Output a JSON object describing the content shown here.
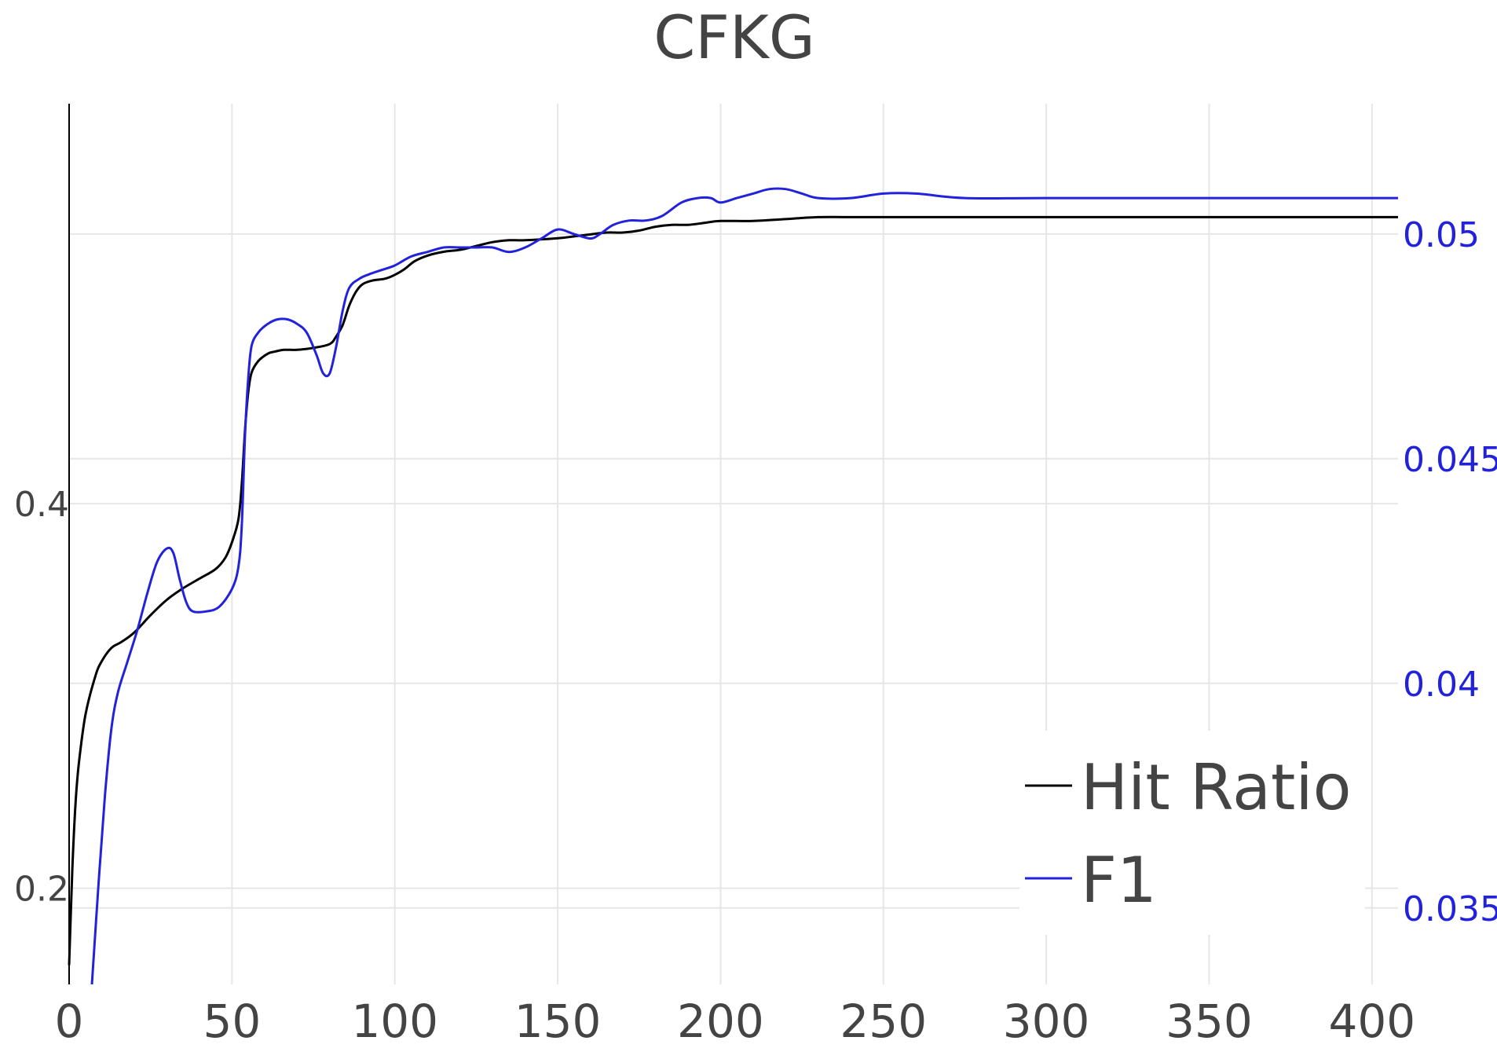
{
  "chart_data": {
    "type": "line",
    "title": "CFKG",
    "xlabel": "",
    "ylabel": "",
    "y2label": "",
    "xlim": [
      0,
      408
    ],
    "ylim": [
      0.15,
      0.608
    ],
    "y2lim": [
      0.0333,
      0.0529
    ],
    "x_ticks": [
      0,
      50,
      100,
      150,
      200,
      250,
      300,
      350,
      400
    ],
    "y_ticks": [
      0.2,
      0.4
    ],
    "y2_ticks": [
      0.035,
      0.04,
      0.045,
      0.05
    ],
    "x_tick_labels": [
      "0",
      "50",
      "100",
      "150",
      "200",
      "250",
      "300",
      "350",
      "400"
    ],
    "y_tick_labels": [
      "0.2",
      "0.4"
    ],
    "y2_tick_labels": [
      "0.035",
      "0.04",
      "0.045",
      "0.05"
    ],
    "grid": true,
    "legend_position": "bottom-right",
    "series": [
      {
        "name": "Hit Ratio",
        "axis": "left",
        "color": "#000000",
        "points": [
          [
            0,
            0.16
          ],
          [
            1,
            0.21
          ],
          [
            2,
            0.245
          ],
          [
            3,
            0.265
          ],
          [
            5,
            0.29
          ],
          [
            8,
            0.31
          ],
          [
            10,
            0.318
          ],
          [
            13,
            0.325
          ],
          [
            16,
            0.328
          ],
          [
            20,
            0.333
          ],
          [
            25,
            0.342
          ],
          [
            30,
            0.35
          ],
          [
            35,
            0.356
          ],
          [
            40,
            0.361
          ],
          [
            45,
            0.366
          ],
          [
            48,
            0.372
          ],
          [
            50,
            0.38
          ],
          [
            52,
            0.392
          ],
          [
            53,
            0.41
          ],
          [
            54,
            0.438
          ],
          [
            55,
            0.458
          ],
          [
            56,
            0.468
          ],
          [
            58,
            0.474
          ],
          [
            61,
            0.478
          ],
          [
            63,
            0.479
          ],
          [
            66,
            0.48
          ],
          [
            70,
            0.48
          ],
          [
            75,
            0.481
          ],
          [
            80,
            0.483
          ],
          [
            82,
            0.487
          ],
          [
            84,
            0.493
          ],
          [
            86,
            0.503
          ],
          [
            88,
            0.51
          ],
          [
            90,
            0.514
          ],
          [
            93,
            0.516
          ],
          [
            97,
            0.517
          ],
          [
            100,
            0.519
          ],
          [
            103,
            0.522
          ],
          [
            106,
            0.526
          ],
          [
            110,
            0.529
          ],
          [
            115,
            0.531
          ],
          [
            120,
            0.532
          ],
          [
            125,
            0.534
          ],
          [
            130,
            0.536
          ],
          [
            135,
            0.537
          ],
          [
            140,
            0.537
          ],
          [
            150,
            0.538
          ],
          [
            155,
            0.539
          ],
          [
            160,
            0.54
          ],
          [
            165,
            0.541
          ],
          [
            170,
            0.541
          ],
          [
            175,
            0.542
          ],
          [
            180,
            0.544
          ],
          [
            185,
            0.545
          ],
          [
            190,
            0.545
          ],
          [
            195,
            0.546
          ],
          [
            200,
            0.547
          ],
          [
            210,
            0.547
          ],
          [
            220,
            0.548
          ],
          [
            230,
            0.549
          ],
          [
            240,
            0.549
          ],
          [
            260,
            0.549
          ],
          [
            280,
            0.549
          ],
          [
            300,
            0.549
          ],
          [
            340,
            0.549
          ],
          [
            380,
            0.549
          ],
          [
            408,
            0.549
          ]
        ]
      },
      {
        "name": "F1",
        "axis": "right",
        "color": "#2222dd",
        "points": [
          [
            7,
            0.0333
          ],
          [
            9,
            0.0355
          ],
          [
            11,
            0.0375
          ],
          [
            13,
            0.039
          ],
          [
            15,
            0.0398
          ],
          [
            18,
            0.0405
          ],
          [
            21,
            0.0412
          ],
          [
            24,
            0.042
          ],
          [
            27,
            0.0427
          ],
          [
            30,
            0.043
          ],
          [
            32,
            0.0429
          ],
          [
            34,
            0.0423
          ],
          [
            36,
            0.0418
          ],
          [
            38,
            0.0416
          ],
          [
            42,
            0.0416
          ],
          [
            46,
            0.0417
          ],
          [
            50,
            0.0421
          ],
          [
            52,
            0.0426
          ],
          [
            53,
            0.0435
          ],
          [
            54,
            0.0455
          ],
          [
            55,
            0.0468
          ],
          [
            56,
            0.0475
          ],
          [
            58,
            0.0478
          ],
          [
            61,
            0.048
          ],
          [
            64,
            0.0481
          ],
          [
            67,
            0.0481
          ],
          [
            70,
            0.048
          ],
          [
            73,
            0.0478
          ],
          [
            76,
            0.0473
          ],
          [
            78,
            0.0469
          ],
          [
            80,
            0.0469
          ],
          [
            82,
            0.0475
          ],
          [
            84,
            0.0483
          ],
          [
            86,
            0.0488
          ],
          [
            89,
            0.049
          ],
          [
            92,
            0.0491
          ],
          [
            96,
            0.0492
          ],
          [
            100,
            0.0493
          ],
          [
            105,
            0.0495
          ],
          [
            110,
            0.0496
          ],
          [
            115,
            0.0497
          ],
          [
            120,
            0.0497
          ],
          [
            125,
            0.0497
          ],
          [
            130,
            0.0497
          ],
          [
            135,
            0.0496
          ],
          [
            140,
            0.0497
          ],
          [
            145,
            0.0499
          ],
          [
            150,
            0.0501
          ],
          [
            155,
            0.05
          ],
          [
            160,
            0.0499
          ],
          [
            163,
            0.05
          ],
          [
            167,
            0.0502
          ],
          [
            172,
            0.0503
          ],
          [
            177,
            0.0503
          ],
          [
            182,
            0.0504
          ],
          [
            188,
            0.0507
          ],
          [
            193,
            0.0508
          ],
          [
            197,
            0.0508
          ],
          [
            200,
            0.0507
          ],
          [
            205,
            0.0508
          ],
          [
            210,
            0.0509
          ],
          [
            215,
            0.051
          ],
          [
            220,
            0.051
          ],
          [
            225,
            0.0509
          ],
          [
            230,
            0.0508
          ],
          [
            240,
            0.0508
          ],
          [
            250,
            0.0509
          ],
          [
            260,
            0.0509
          ],
          [
            275,
            0.0508
          ],
          [
            300,
            0.0508
          ],
          [
            350,
            0.0508
          ],
          [
            408,
            0.0508
          ]
        ]
      }
    ]
  }
}
